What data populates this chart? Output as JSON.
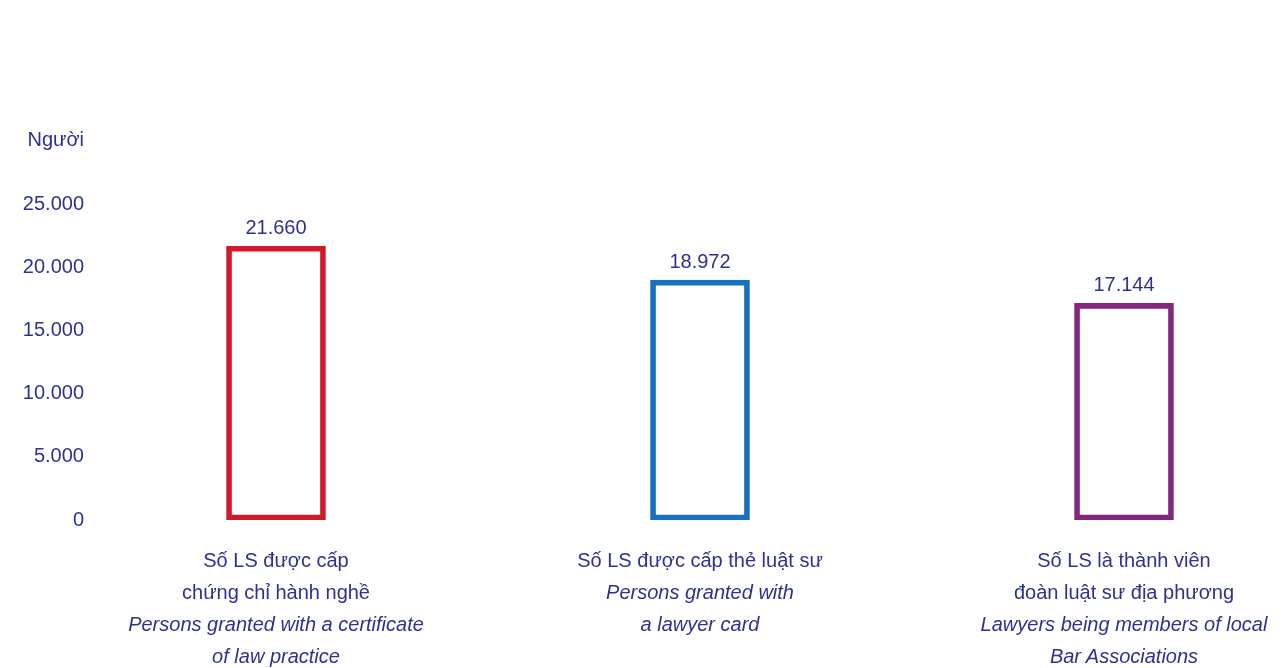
{
  "chart_data": {
    "type": "bar",
    "ylabel": "Người",
    "categories": [
      "Số LS được cấp\nchứng chỉ hành nghề\nPersons granted with a certificate\nof law practice",
      "Số LS được cấp thẻ luật sư\nPersons granted with\na lawyer card",
      "Số LS là thành viên\nđoàn luật sư địa phương\nLawyers being members of local\nBar Associations"
    ],
    "values": [
      21660,
      18972,
      17144
    ],
    "colors": [
      "#d01a27",
      "#1870c0",
      "#84257f"
    ],
    "value_labels": [
      "21.660",
      "18.972",
      "17.144"
    ],
    "ylim": [
      0,
      25000
    ],
    "yticks": [
      0,
      {
        "value": 5000,
        "label": "5.000"
      },
      {
        "value": 10000,
        "label": "10.000"
      },
      {
        "value": 15000,
        "label": "15.000"
      },
      {
        "value": 20000,
        "label": "20.000"
      },
      {
        "value": 25000,
        "label": "25.000"
      }
    ],
    "grid": false,
    "legend": false
  }
}
